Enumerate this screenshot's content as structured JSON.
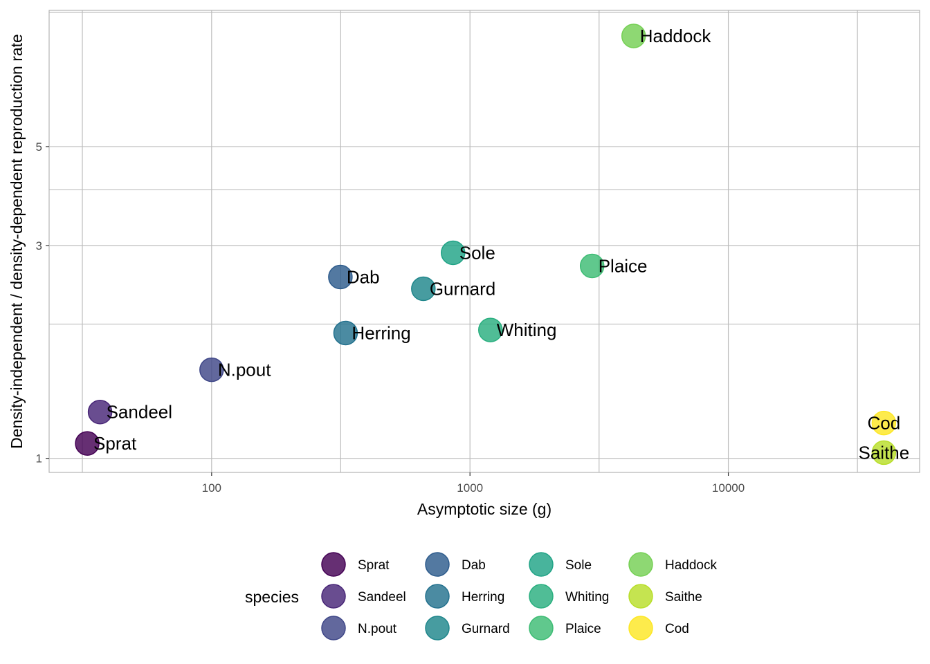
{
  "chart_data": {
    "type": "scatter",
    "title": "",
    "xlabel": "Asymptotic size (g)",
    "ylabel": "Density-independent / density-dependent reproduction rate",
    "x_scale": "log10",
    "y_scale": "log10",
    "xlim": [
      23.5,
      55000
    ],
    "ylim": [
      0.93,
      10.1
    ],
    "x_ticks": [
      {
        "value": 100,
        "label": "100"
      },
      {
        "value": 1000,
        "label": "1000"
      },
      {
        "value": 10000,
        "label": "10000"
      }
    ],
    "x_minor_gridlines": [
      31.6,
      316,
      3160,
      31600
    ],
    "y_ticks": [
      {
        "value": 1,
        "label": "1"
      },
      {
        "value": 3,
        "label": "3"
      },
      {
        "value": 5,
        "label": "5"
      }
    ],
    "y_minor_gridlines": [
      2,
      4,
      10
    ],
    "grid": true,
    "legend": {
      "title": "species",
      "placement": "bottom",
      "columns": [
        [
          "Sprat",
          "Sandeel",
          "N.pout"
        ],
        [
          "Dab",
          "Herring",
          "Gurnard"
        ],
        [
          "Sole",
          "Whiting",
          "Plaice"
        ],
        [
          "Haddock",
          "Saithe",
          "Cod"
        ]
      ]
    },
    "points": [
      {
        "species": "Sprat",
        "x": 33,
        "y": 1.08,
        "color": "#440154"
      },
      {
        "species": "Sandeel",
        "x": 37,
        "y": 1.27,
        "color": "#482677"
      },
      {
        "species": "N.pout",
        "x": 100,
        "y": 1.58,
        "color": "#3F4788"
      },
      {
        "species": "Dab",
        "x": 315,
        "y": 2.55,
        "color": "#2D5B8C"
      },
      {
        "species": "Herring",
        "x": 330,
        "y": 1.91,
        "color": "#23718E"
      },
      {
        "species": "Gurnard",
        "x": 660,
        "y": 2.4,
        "color": "#1F868B"
      },
      {
        "species": "Sole",
        "x": 860,
        "y": 2.89,
        "color": "#20A386"
      },
      {
        "species": "Whiting",
        "x": 1200,
        "y": 1.94,
        "color": "#29AF7F"
      },
      {
        "species": "Plaice",
        "x": 2970,
        "y": 2.7,
        "color": "#3DBC74"
      },
      {
        "species": "Haddock",
        "x": 4300,
        "y": 8.85,
        "color": "#75D054"
      },
      {
        "species": "Saithe",
        "x": 40000,
        "y": 1.03,
        "color": "#B8DE29"
      },
      {
        "species": "Cod",
        "x": 40000,
        "y": 1.2,
        "color": "#FDE725"
      }
    ]
  }
}
